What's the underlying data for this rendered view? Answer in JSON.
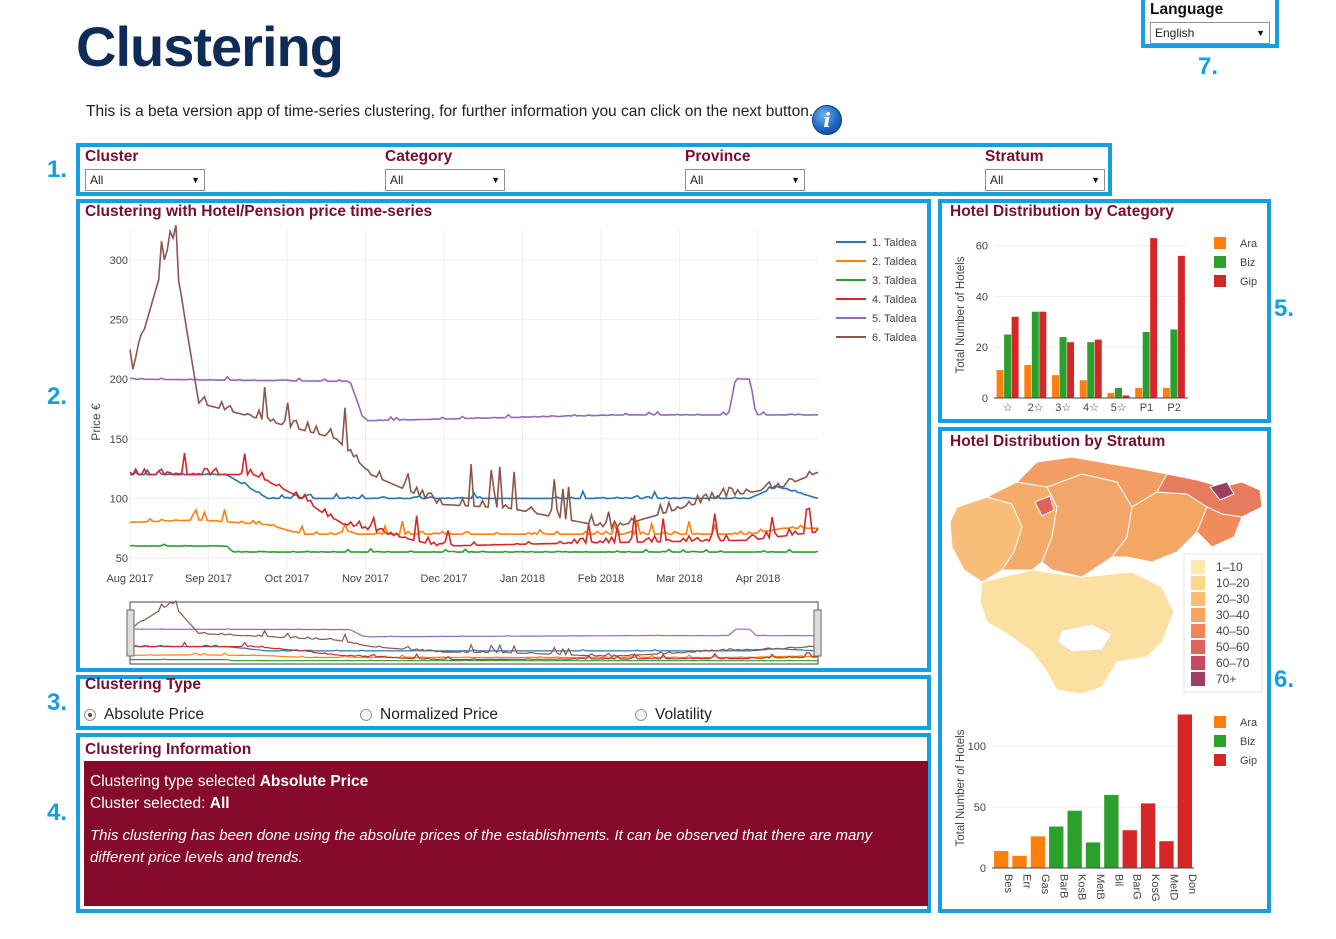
{
  "page": {
    "title": "Clustering",
    "intro": "This is a beta version app of time-series clustering, for further information you can click on the next button."
  },
  "language": {
    "label": "Language",
    "value": "English"
  },
  "markers": [
    "1.",
    "2.",
    "3.",
    "4.",
    "5.",
    "6.",
    "7."
  ],
  "filters": [
    {
      "label": "Cluster",
      "value": "All"
    },
    {
      "label": "Category",
      "value": "All"
    },
    {
      "label": "Province",
      "value": "All"
    },
    {
      "label": "Stratum",
      "value": "All"
    }
  ],
  "timeseries": {
    "title": "Clustering with Hotel/Pension price time-series",
    "ylabel": "Price €",
    "xticks": [
      "Aug 2017",
      "Sep 2017",
      "Oct 2017",
      "Nov 2017",
      "Dec 2017",
      "Jan 2018",
      "Feb 2018",
      "Mar 2018",
      "Apr 2018"
    ],
    "yticks": [
      50,
      100,
      150,
      200,
      250,
      300
    ],
    "ylim": [
      40,
      325
    ],
    "legend": [
      "1. Taldea",
      "2. Taldea",
      "3. Taldea",
      "4. Taldea",
      "5. Taldea",
      "6. Taldea"
    ],
    "colors": [
      "#1f77b4",
      "#ff7f0e",
      "#2ca02c",
      "#d62728",
      "#9467bd",
      "#8c564b"
    ]
  },
  "clustering_type": {
    "title": "Clustering Type",
    "options": [
      {
        "label": "Absolute Price",
        "selected": true
      },
      {
        "label": "Normalized Price",
        "selected": false
      },
      {
        "label": "Volatility",
        "selected": false
      }
    ]
  },
  "clustering_info": {
    "title": "Clustering Information",
    "type_prefix": "Clustering type selected ",
    "type_value": "Absolute Price",
    "cluster_prefix": "Cluster selected: ",
    "cluster_value": "All",
    "description": "This clustering has been done using the absolute prices of the establishments. It can be observed that there are many different price levels and trends."
  },
  "category_chart": {
    "title": "Hotel Distribution by Category"
  },
  "stratum_section": {
    "title": "Hotel Distribution by Stratum",
    "map_legend": [
      "1–10",
      "10–20",
      "20–30",
      "30–40",
      "40–50",
      "50–60",
      "60–70",
      "70+"
    ],
    "map_colors": [
      "#fde9b0",
      "#fbd78d",
      "#f8bf6e",
      "#f4a45f",
      "#ef8558",
      "#e0625c",
      "#c84a61",
      "#9b3f63"
    ]
  },
  "chart_data": [
    {
      "type": "line",
      "title": "Clustering with Hotel/Pension price time-series",
      "ylabel": "Price €",
      "x_range": [
        "Aug 2017",
        "Apr 2018"
      ],
      "ylim": [
        40,
        325
      ],
      "series": [
        {
          "name": "1. Taldea",
          "approx": [
            [
              0,
              120
            ],
            [
              0.14,
              120
            ],
            [
              0.2,
              100
            ],
            [
              0.5,
              100
            ],
            [
              0.55,
              100
            ],
            [
              0.9,
              100
            ],
            [
              0.94,
              110
            ],
            [
              1,
              100
            ]
          ]
        },
        {
          "name": "2. Taldea",
          "approx": [
            [
              0,
              80
            ],
            [
              0.1,
              82
            ],
            [
              0.2,
              78
            ],
            [
              0.25,
              70
            ],
            [
              0.5,
              70
            ],
            [
              0.9,
              70
            ],
            [
              0.95,
              75
            ],
            [
              1,
              75
            ]
          ]
        },
        {
          "name": "3. Taldea",
          "approx": [
            [
              0,
              60
            ],
            [
              0.14,
              60
            ],
            [
              0.15,
              55
            ],
            [
              0.5,
              55
            ],
            [
              0.6,
              55
            ],
            [
              1,
              55
            ]
          ]
        },
        {
          "name": "4. Taldea",
          "approx": [
            [
              0,
              120
            ],
            [
              0.18,
              120
            ],
            [
              0.25,
              100
            ],
            [
              0.3,
              80
            ],
            [
              0.45,
              60
            ],
            [
              0.6,
              62
            ],
            [
              0.9,
              65
            ],
            [
              1,
              72
            ]
          ]
        },
        {
          "name": "5. Taldea",
          "approx": [
            [
              0,
              200
            ],
            [
              0.32,
              198
            ],
            [
              0.34,
              165
            ],
            [
              0.72,
              170
            ],
            [
              0.87,
              170
            ],
            [
              0.88,
              200
            ],
            [
              0.9,
              200
            ],
            [
              0.91,
              170
            ],
            [
              1,
              170
            ]
          ]
        },
        {
          "name": "6. Taldea",
          "approx": [
            [
              0,
              200
            ],
            [
              0.06,
              320
            ],
            [
              0.1,
              180
            ],
            [
              0.3,
              150
            ],
            [
              0.35,
              120
            ],
            [
              0.45,
              95
            ],
            [
              0.55,
              92
            ],
            [
              0.7,
              75
            ],
            [
              0.85,
              100
            ],
            [
              0.95,
              110
            ],
            [
              1,
              122
            ]
          ]
        }
      ]
    },
    {
      "type": "bar",
      "title": "Hotel Distribution by Category",
      "ylabel": "Total Number of Hotels",
      "categories": [
        "☆",
        "2☆",
        "3☆",
        "4☆",
        "5☆",
        "P1",
        "P2"
      ],
      "ylim": [
        0,
        65
      ],
      "yticks": [
        0,
        20,
        40,
        60
      ],
      "series": [
        {
          "name": "Ara",
          "color": "#ff7f0e",
          "values": [
            11,
            13,
            9,
            7,
            2,
            4,
            4
          ]
        },
        {
          "name": "Biz",
          "color": "#2ca02c",
          "values": [
            25,
            34,
            24,
            22,
            4,
            26,
            27
          ]
        },
        {
          "name": "Gip",
          "color": "#d62728",
          "values": [
            32,
            34,
            22,
            23,
            1,
            63,
            56
          ]
        }
      ]
    },
    {
      "type": "bar",
      "title": "Hotel Distribution by Stratum",
      "ylabel": "Total Number of Hotels",
      "categories": [
        "Bes",
        "Err",
        "Gas",
        "BarB",
        "KosB",
        "MetB",
        "Bil",
        "BarG",
        "KosG",
        "MetD",
        "Don"
      ],
      "ylim": [
        0,
        128
      ],
      "yticks": [
        0,
        50,
        100
      ],
      "legend": [
        "Ara",
        "Biz",
        "Gip"
      ],
      "colors": [
        "#ff7f0e",
        "#ff7f0e",
        "#ff7f0e",
        "#2ca02c",
        "#2ca02c",
        "#2ca02c",
        "#2ca02c",
        "#d62728",
        "#d62728",
        "#d62728",
        "#d62728"
      ],
      "values": [
        14,
        10,
        26,
        34,
        47,
        21,
        60,
        31,
        53,
        22,
        126
      ]
    }
  ]
}
